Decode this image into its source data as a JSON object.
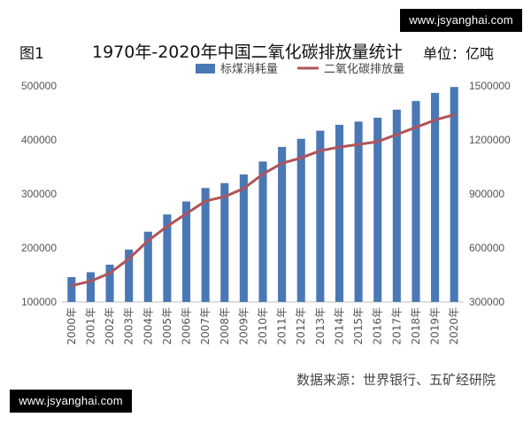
{
  "figure_label": "图1",
  "watermark": "www.jsyanghai.com",
  "source": "数据来源：世界银行、五矿经研院",
  "chart_data": {
    "type": "bar",
    "title": "1970年-2020年中国二氧化碳排放量统计",
    "unit_note": "单位：亿吨",
    "legend_position": "top-center",
    "grid": false,
    "categories": [
      "2000年",
      "2001年",
      "2002年",
      "2003年",
      "2004年",
      "2005年",
      "2006年",
      "2007年",
      "2008年",
      "2009年",
      "2010年",
      "2011年",
      "2012年",
      "2013年",
      "2014年",
      "2015年",
      "2016年",
      "2017年",
      "2018年",
      "2019年",
      "2020年"
    ],
    "series": [
      {
        "name": "标煤消耗量",
        "type": "bar",
        "axis": "left",
        "color": "#4a78b5",
        "values": [
          146000,
          155000,
          169000,
          197000,
          230000,
          262000,
          286000,
          311000,
          320000,
          336000,
          360000,
          387000,
          402000,
          417000,
          428000,
          434000,
          441000,
          456000,
          472000,
          487000,
          498000
        ]
      },
      {
        "name": "二氧化碳排放量",
        "type": "line",
        "axis": "right",
        "color": "#b0545a",
        "values": [
          390000,
          415000,
          460000,
          540000,
          640000,
          720000,
          790000,
          860000,
          885000,
          930000,
          1010000,
          1070000,
          1100000,
          1140000,
          1160000,
          1175000,
          1190000,
          1230000,
          1270000,
          1310000,
          1340000
        ]
      }
    ],
    "y_left": {
      "min": 100000,
      "max": 500000,
      "ticks": [
        "100000",
        "200000",
        "300000",
        "400000",
        "500000"
      ]
    },
    "y_right": {
      "min": 300000,
      "max": 1500000,
      "ticks": [
        "300000",
        "600000",
        "900000",
        "1200000",
        "1500000"
      ]
    }
  }
}
